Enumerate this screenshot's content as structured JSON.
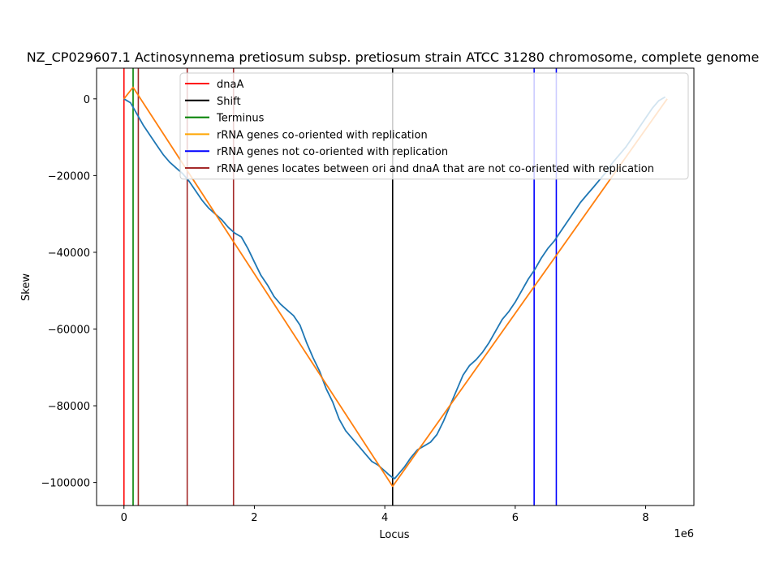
{
  "chart_data": {
    "type": "line",
    "title": "NZ_CP029607.1 Actinosynnema pretiosum subsp. pretiosum strain ATCC 31280 chromosome, complete genome",
    "xlabel": "Locus",
    "ylabel": "Skew",
    "x_offset_label": "1e6",
    "xlim": [
      -0.42,
      8.74
    ],
    "ylim": [
      -106000,
      8000
    ],
    "x_ticks": [
      0,
      2,
      4,
      6,
      8
    ],
    "x_tick_labels": [
      "0",
      "2",
      "4",
      "6",
      "8"
    ],
    "y_ticks": [
      0,
      -20000,
      -40000,
      -60000,
      -80000,
      -100000
    ],
    "y_tick_labels": [
      "0",
      "−20000",
      "−40000",
      "−60000",
      "−80000",
      "−100000"
    ],
    "grid": false,
    "legend_placement": "top-right",
    "legend": [
      {
        "label": "dnaA",
        "color": "#ff0000"
      },
      {
        "label": "Shift",
        "color": "#000000"
      },
      {
        "label": "Terminus",
        "color": "#008000"
      },
      {
        "label": "rRNA genes co-oriented with replication",
        "color": "#ffa500"
      },
      {
        "label": "rRNA genes not co-oriented with replication",
        "color": "#0000ff"
      },
      {
        "label": "rRNA genes locates between ori and dnaA that are not co-oriented with replication",
        "color": "#a52a2a"
      }
    ],
    "vlines": [
      {
        "name": "dnaA",
        "x": 0.0,
        "color": "#ff0000"
      },
      {
        "name": "Terminus",
        "x": 0.14,
        "color": "#008000"
      },
      {
        "name": "rRNA between ori and dnaA 1",
        "x": 0.22,
        "color": "#a52a2a"
      },
      {
        "name": "rRNA between ori and dnaA 2",
        "x": 0.97,
        "color": "#a52a2a"
      },
      {
        "name": "rRNA between ori and dnaA 3",
        "x": 1.68,
        "color": "#a52a2a"
      },
      {
        "name": "Shift",
        "x": 4.12,
        "color": "#000000"
      },
      {
        "name": "rRNA not co-oriented 1",
        "x": 6.29,
        "color": "#0000ff"
      },
      {
        "name": "rRNA not co-oriented 2",
        "x": 6.63,
        "color": "#0000ff"
      }
    ],
    "series": [
      {
        "color": "#1f77b4",
        "x": [
          0.0,
          0.1,
          0.15,
          0.2,
          0.3,
          0.4,
          0.5,
          0.6,
          0.7,
          0.8,
          0.9,
          1.0,
          1.1,
          1.2,
          1.3,
          1.4,
          1.5,
          1.6,
          1.7,
          1.8,
          1.9,
          2.0,
          2.1,
          2.2,
          2.3,
          2.4,
          2.5,
          2.6,
          2.7,
          2.8,
          2.9,
          3.0,
          3.1,
          3.2,
          3.3,
          3.4,
          3.5,
          3.6,
          3.7,
          3.8,
          3.9,
          4.0,
          4.05,
          4.1,
          4.15,
          4.2,
          4.3,
          4.4,
          4.5,
          4.6,
          4.7,
          4.8,
          4.9,
          5.0,
          5.1,
          5.2,
          5.3,
          5.4,
          5.5,
          5.6,
          5.7,
          5.8,
          5.9,
          6.0,
          6.1,
          6.2,
          6.3,
          6.4,
          6.5,
          6.6,
          6.7,
          6.8,
          6.9,
          7.0,
          7.1,
          7.2,
          7.3,
          7.4,
          7.5,
          7.6,
          7.7,
          7.8,
          7.9,
          8.0,
          8.1,
          8.2,
          8.3
        ],
        "y": [
          0,
          -1000,
          -2500,
          -4000,
          -7000,
          -9500,
          -12000,
          -14500,
          -16500,
          -18000,
          -19500,
          -21500,
          -24000,
          -26500,
          -28500,
          -30000,
          -31500,
          -33500,
          -35000,
          -36000,
          -39000,
          -42500,
          -46000,
          -48500,
          -51500,
          -53500,
          -55000,
          -56500,
          -59000,
          -63500,
          -67500,
          -71000,
          -75500,
          -79000,
          -83500,
          -86500,
          -88500,
          -90500,
          -92500,
          -94500,
          -95500,
          -97000,
          -97800,
          -98500,
          -99000,
          -98000,
          -96000,
          -93500,
          -91500,
          -90500,
          -89500,
          -87500,
          -84000,
          -80000,
          -76000,
          -72000,
          -69500,
          -68000,
          -66000,
          -63500,
          -60500,
          -57500,
          -55500,
          -53000,
          -50000,
          -47000,
          -44500,
          -41500,
          -39000,
          -37000,
          -34500,
          -32000,
          -29500,
          -27000,
          -25000,
          -23000,
          -21000,
          -19000,
          -16500,
          -14500,
          -12500,
          -10000,
          -7500,
          -5000,
          -2500,
          -500,
          500
        ]
      },
      {
        "color": "#ff7f0e",
        "x": [
          0.0,
          0.14,
          4.12,
          8.33
        ],
        "y": [
          0,
          3000,
          -101000,
          0
        ]
      }
    ]
  }
}
